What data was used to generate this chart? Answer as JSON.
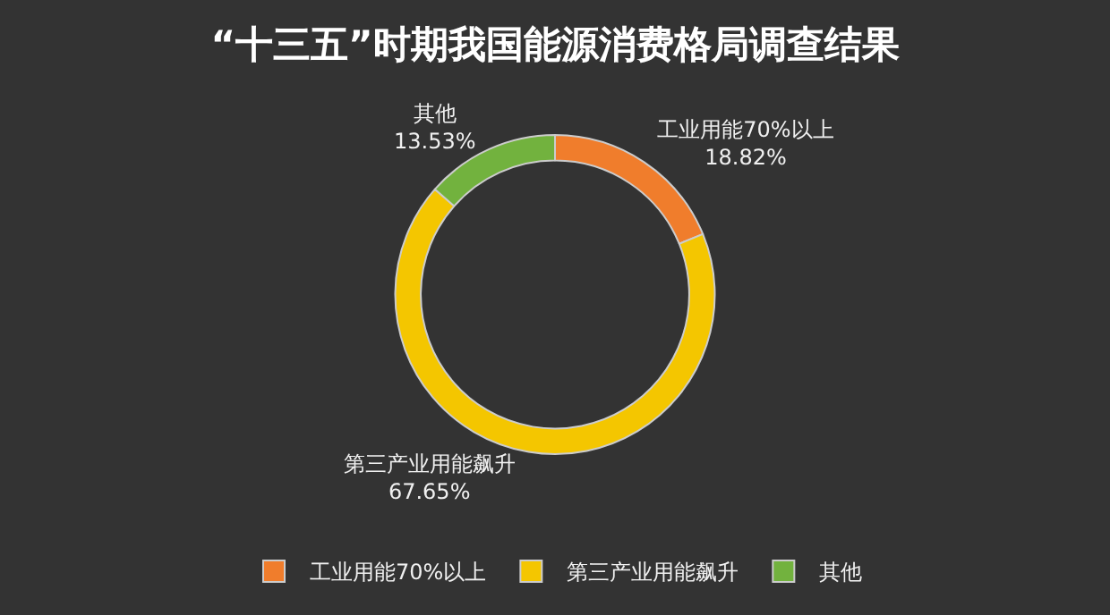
{
  "chart_data": {
    "type": "donut",
    "title": "“十三五”时期我国能源消费格局调查结果",
    "categories": [
      "工业用能70%以上",
      "第三产业用能飙升",
      "其他"
    ],
    "values": [
      18.82,
      67.65,
      13.53
    ],
    "value_labels": [
      "18.82%",
      "67.65%",
      "13.53%"
    ],
    "colors": [
      "#f07d2c",
      "#f4c600",
      "#72b23e"
    ],
    "legend": "bottom"
  }
}
